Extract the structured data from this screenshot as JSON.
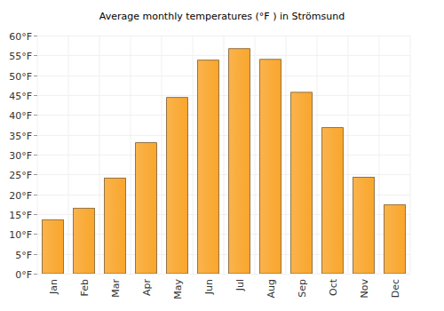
{
  "chart_data": {
    "type": "bar",
    "title": "Average monthly temperatures (°F ) in Strömsund",
    "categories": [
      "Jan",
      "Feb",
      "Mar",
      "Apr",
      "May",
      "Jun",
      "Jul",
      "Aug",
      "Sep",
      "Oct",
      "Nov",
      "Dec"
    ],
    "values": [
      13.6,
      16.5,
      24.1,
      33.0,
      44.4,
      53.8,
      56.7,
      54.0,
      45.7,
      36.8,
      24.3,
      17.4
    ],
    "color": "#f9a62c",
    "ylim": [
      0,
      60
    ],
    "yticks": [
      {
        "value": 0,
        "label": "0°F"
      },
      {
        "value": 5,
        "label": "5°F"
      },
      {
        "value": 10,
        "label": "10°F"
      },
      {
        "value": 15,
        "label": "15°F"
      },
      {
        "value": 20,
        "label": "20°F"
      },
      {
        "value": 25,
        "label": "25°F"
      },
      {
        "value": 30,
        "label": "30°F"
      },
      {
        "value": 35,
        "label": "35°F"
      },
      {
        "value": 40,
        "label": "40°F"
      },
      {
        "value": 45,
        "label": "45°F"
      },
      {
        "value": 50,
        "label": "50°F"
      },
      {
        "value": 55,
        "label": "55°F"
      },
      {
        "value": 60,
        "label": "60°F"
      }
    ],
    "grid": true
  }
}
